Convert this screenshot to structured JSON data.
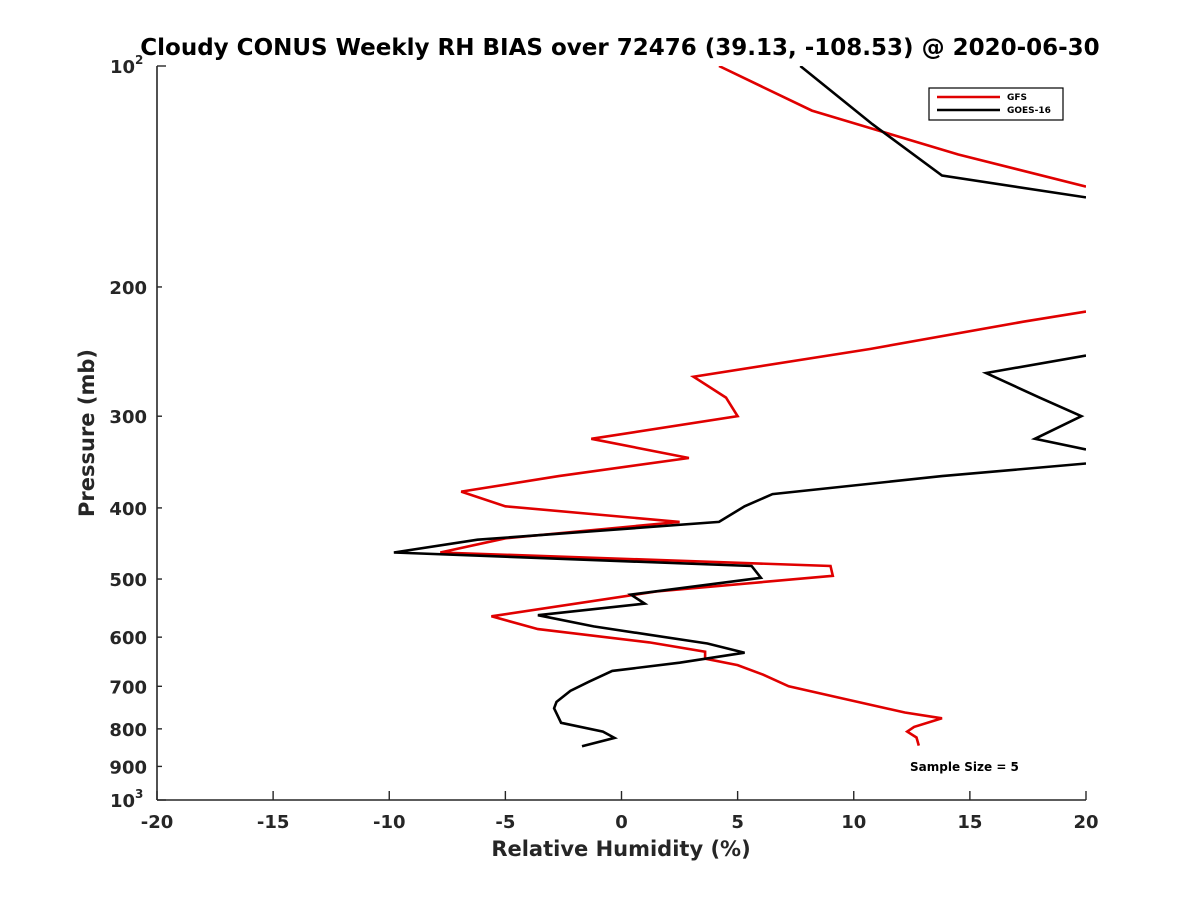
{
  "chart_data": {
    "type": "line",
    "title": "Cloudy CONUS Weekly RH BIAS over 72476 (39.13, -108.53) @ 2020-06-30",
    "xlabel": "Relative Humidity (%)",
    "ylabel": "Pressure (mb)",
    "xlim": [
      -20,
      20
    ],
    "ylim": [
      100,
      1000
    ],
    "y_scale": "log",
    "y_reversed": true,
    "x_ticks": [
      -20,
      -15,
      -10,
      -5,
      0,
      5,
      10,
      15,
      20
    ],
    "x_tick_labels": [
      "-20",
      "-15",
      "-10",
      "-5",
      "0",
      "5",
      "10",
      "15",
      "20"
    ],
    "y_ticks": [
      {
        "value": 100,
        "label": "10",
        "sup": "2"
      },
      {
        "value": 200,
        "label": "200"
      },
      {
        "value": 300,
        "label": "300"
      },
      {
        "value": 400,
        "label": "400"
      },
      {
        "value": 500,
        "label": "500"
      },
      {
        "value": 600,
        "label": "600"
      },
      {
        "value": 700,
        "label": "700"
      },
      {
        "value": 800,
        "label": "800"
      },
      {
        "value": 900,
        "label": "900"
      },
      {
        "value": 1000,
        "label": "10",
        "sup": "3"
      }
    ],
    "grid": false,
    "legend_position": "top-right",
    "annotation": "Sample Size = 5",
    "series": [
      {
        "name": "GFS",
        "color": "#e00000",
        "segments": [
          [
            [
              4.2,
              100
            ],
            [
              8.2,
              115
            ],
            [
              14.5,
              132
            ],
            [
              20,
              146
            ]
          ],
          [
            [
              20,
              216
            ],
            [
              17.3,
              223
            ],
            [
              10.7,
              243
            ],
            [
              3.1,
              265
            ],
            [
              4.5,
              283
            ],
            [
              5,
              300
            ],
            [
              -1.3,
              322
            ],
            [
              2.9,
              342
            ],
            [
              -2.7,
              362
            ],
            [
              -6.9,
              380
            ],
            [
              -5,
              398
            ],
            [
              2.5,
              418
            ],
            [
              -5,
              440
            ],
            [
              -7.8,
              460
            ],
            [
              9,
              480
            ],
            [
              9.1,
              495
            ],
            [
              1.5,
              520
            ],
            [
              -5.6,
              562
            ],
            [
              -3.6,
              585
            ],
            [
              1.2,
              610
            ],
            [
              3.6,
              628
            ],
            [
              3.6,
              642
            ],
            [
              5,
              655
            ],
            [
              6.1,
              675
            ],
            [
              7.2,
              700
            ],
            [
              9.5,
              727
            ],
            [
              12.2,
              760
            ],
            [
              13.8,
              774
            ],
            [
              12.6,
              795
            ],
            [
              12.3,
              807
            ],
            [
              12.7,
              822
            ],
            [
              12.8,
              843
            ]
          ]
        ]
      },
      {
        "name": "GOES-16",
        "color": "#000000",
        "segments": [
          [
            [
              7.7,
              100
            ],
            [
              10.8,
              120
            ],
            [
              13.8,
              141
            ],
            [
              20,
              151
            ]
          ],
          [
            [
              20,
              248
            ],
            [
              15.7,
              262
            ],
            [
              18,
              283
            ],
            [
              19.8,
              300
            ],
            [
              17.8,
              322
            ],
            [
              20,
              333
            ]
          ],
          [
            [
              20,
              348
            ],
            [
              13.8,
              362
            ],
            [
              6.5,
              383
            ],
            [
              5.3,
              398
            ],
            [
              4.2,
              418
            ],
            [
              -6.2,
              442
            ],
            [
              -9.8,
              460
            ],
            [
              5.6,
              480
            ],
            [
              6,
              498
            ],
            [
              0.4,
              525
            ],
            [
              1,
              540
            ],
            [
              -3.6,
              560
            ],
            [
              -1.2,
              580
            ],
            [
              3.7,
              612
            ],
            [
              5.3,
              630
            ],
            [
              2.5,
              650
            ],
            [
              -0.4,
              667
            ],
            [
              -1.4,
              690
            ],
            [
              -2.2,
              710
            ],
            [
              -2.8,
              735
            ],
            [
              -2.9,
              750
            ],
            [
              -2.6,
              785
            ],
            [
              -0.8,
              807
            ],
            [
              -0.3,
              823
            ],
            [
              -1.7,
              845
            ]
          ]
        ]
      }
    ]
  }
}
